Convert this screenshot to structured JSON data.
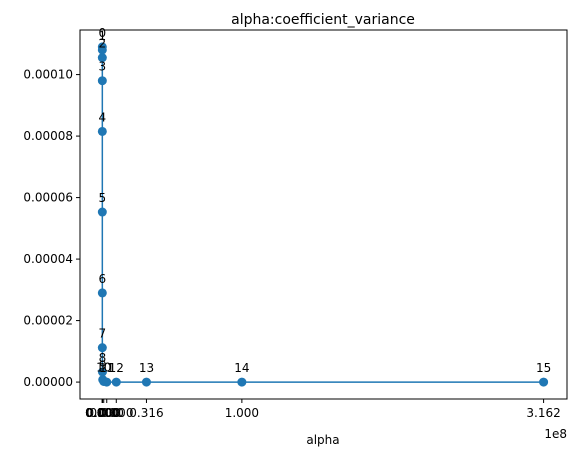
{
  "chart_data": {
    "type": "line",
    "title": "alpha:coefficient_variance",
    "xlabel": "alpha",
    "ylabel": "",
    "x_offset_label": "1e8",
    "xlim": [
      -16000000,
      333000000
    ],
    "ylim": [
      -5.5e-06,
      0.0001145
    ],
    "xticks": [
      {
        "value": 0,
        "label": "0.000"
      },
      {
        "value": 100,
        "label": "0.000"
      },
      {
        "value": 1000,
        "label": "0.000"
      },
      {
        "value": 10000,
        "label": "0.000"
      },
      {
        "value": 100000,
        "label": "0.000"
      },
      {
        "value": 1000000,
        "label": "0.000"
      },
      {
        "value": 3162278,
        "label": "0.000"
      },
      {
        "value": 10000000,
        "label": "0.000"
      },
      {
        "value": 31622777,
        "label": "0.316"
      },
      {
        "value": 100000000,
        "label": "1.000"
      },
      {
        "value": 316227766,
        "label": "3.162"
      }
    ],
    "yticks": [
      {
        "value": 0,
        "label": "0.00000"
      },
      {
        "value": 2e-05,
        "label": "0.00002"
      },
      {
        "value": 4e-05,
        "label": "0.00004"
      },
      {
        "value": 6e-05,
        "label": "0.00006"
      },
      {
        "value": 8e-05,
        "label": "0.00008"
      },
      {
        "value": 0.0001,
        "label": "0.00010"
      }
    ],
    "color": "#1f77b4",
    "points": [
      {
        "label": "0",
        "x": 0.001,
        "y": 0.000109
      },
      {
        "label": "1",
        "x": 0.01,
        "y": 0.000108
      },
      {
        "label": "2",
        "x": 0.1,
        "y": 0.0001055
      },
      {
        "label": "3",
        "x": 1,
        "y": 9.8e-05
      },
      {
        "label": "4",
        "x": 10,
        "y": 8.15e-05
      },
      {
        "label": "5",
        "x": 100,
        "y": 5.53e-05
      },
      {
        "label": "6",
        "x": 1000,
        "y": 2.9e-05
      },
      {
        "label": "7",
        "x": 10000,
        "y": 1.12e-05
      },
      {
        "label": "8",
        "x": 100000,
        "y": 3.3e-06
      },
      {
        "label": "9",
        "x": 316228,
        "y": 8e-07
      },
      {
        "label": "10",
        "x": 1000000,
        "y": 2e-07
      },
      {
        "label": "11",
        "x": 3162278,
        "y": 0.0
      },
      {
        "label": "12",
        "x": 10000000,
        "y": 0.0
      },
      {
        "label": "13",
        "x": 31622777,
        "y": 0.0
      },
      {
        "label": "14",
        "x": 100000000,
        "y": 0.0
      },
      {
        "label": "15",
        "x": 316227766,
        "y": 0.0
      }
    ]
  }
}
